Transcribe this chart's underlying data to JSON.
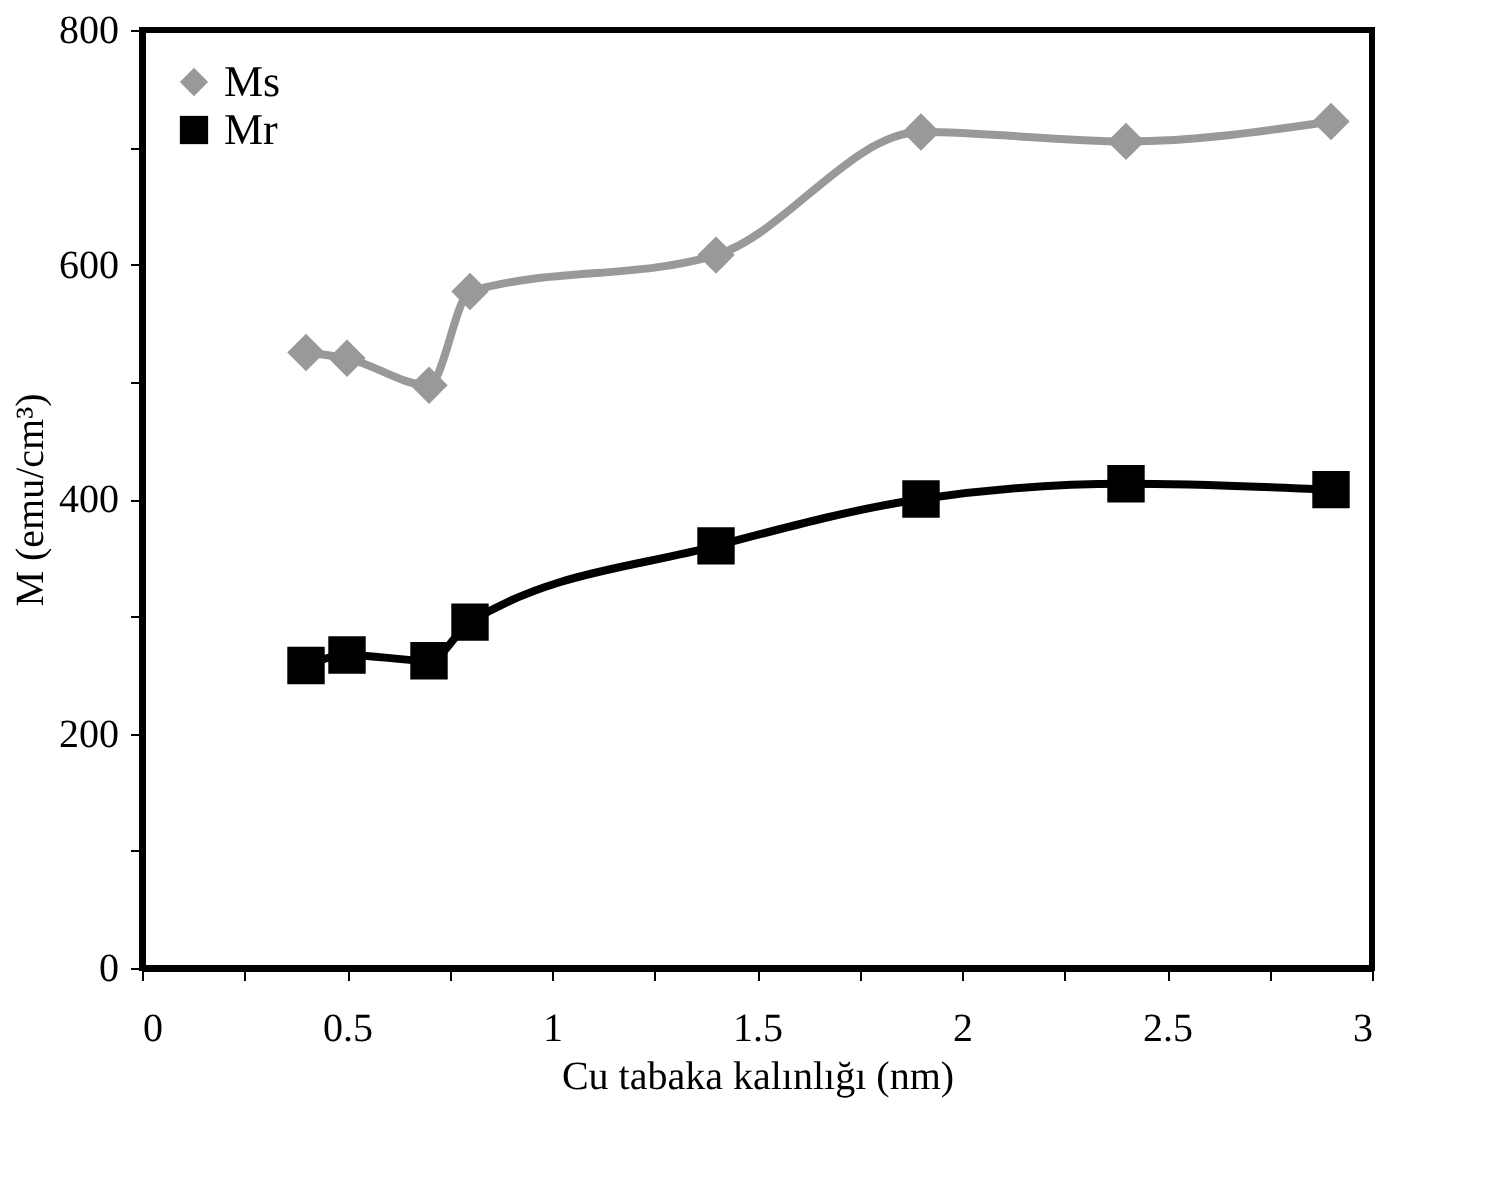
{
  "chart_data": {
    "type": "line",
    "xlabel": "Cu tabaka kalınlığı (nm)",
    "ylabel": "M (emu/cm³)",
    "x": [
      0.4,
      0.5,
      0.7,
      0.8,
      1.4,
      1.9,
      2.4,
      2.9
    ],
    "series": [
      {
        "name": "Ms",
        "color": "#999999",
        "marker": "diamond",
        "values": [
          525,
          520,
          497,
          577,
          608,
          713,
          705,
          722
        ]
      },
      {
        "name": "Mr",
        "color": "#000000",
        "marker": "square",
        "values": [
          258,
          267,
          262,
          295,
          360,
          400,
          413,
          408
        ]
      }
    ],
    "xlim": [
      0,
      3
    ],
    "xticks": [
      0,
      {
        "value": 0.25,
        "label": null
      },
      0.5,
      {
        "value": 0.75,
        "label": null
      },
      1,
      {
        "value": 1.25,
        "label": null
      },
      1.5,
      {
        "value": 1.75,
        "label": null
      },
      2,
      {
        "value": 2.25,
        "label": null
      },
      2.5,
      {
        "value": 2.75,
        "label": null
      },
      3
    ],
    "ylim": [
      0,
      800
    ],
    "yticks": [
      0,
      {
        "value": 100,
        "label": null
      },
      200,
      {
        "value": 300,
        "label": null
      },
      400,
      {
        "value": 500,
        "label": null
      },
      600,
      {
        "value": 700,
        "label": null
      },
      800
    ],
    "grid": false,
    "legend": "top left",
    "line_style": "solid"
  }
}
